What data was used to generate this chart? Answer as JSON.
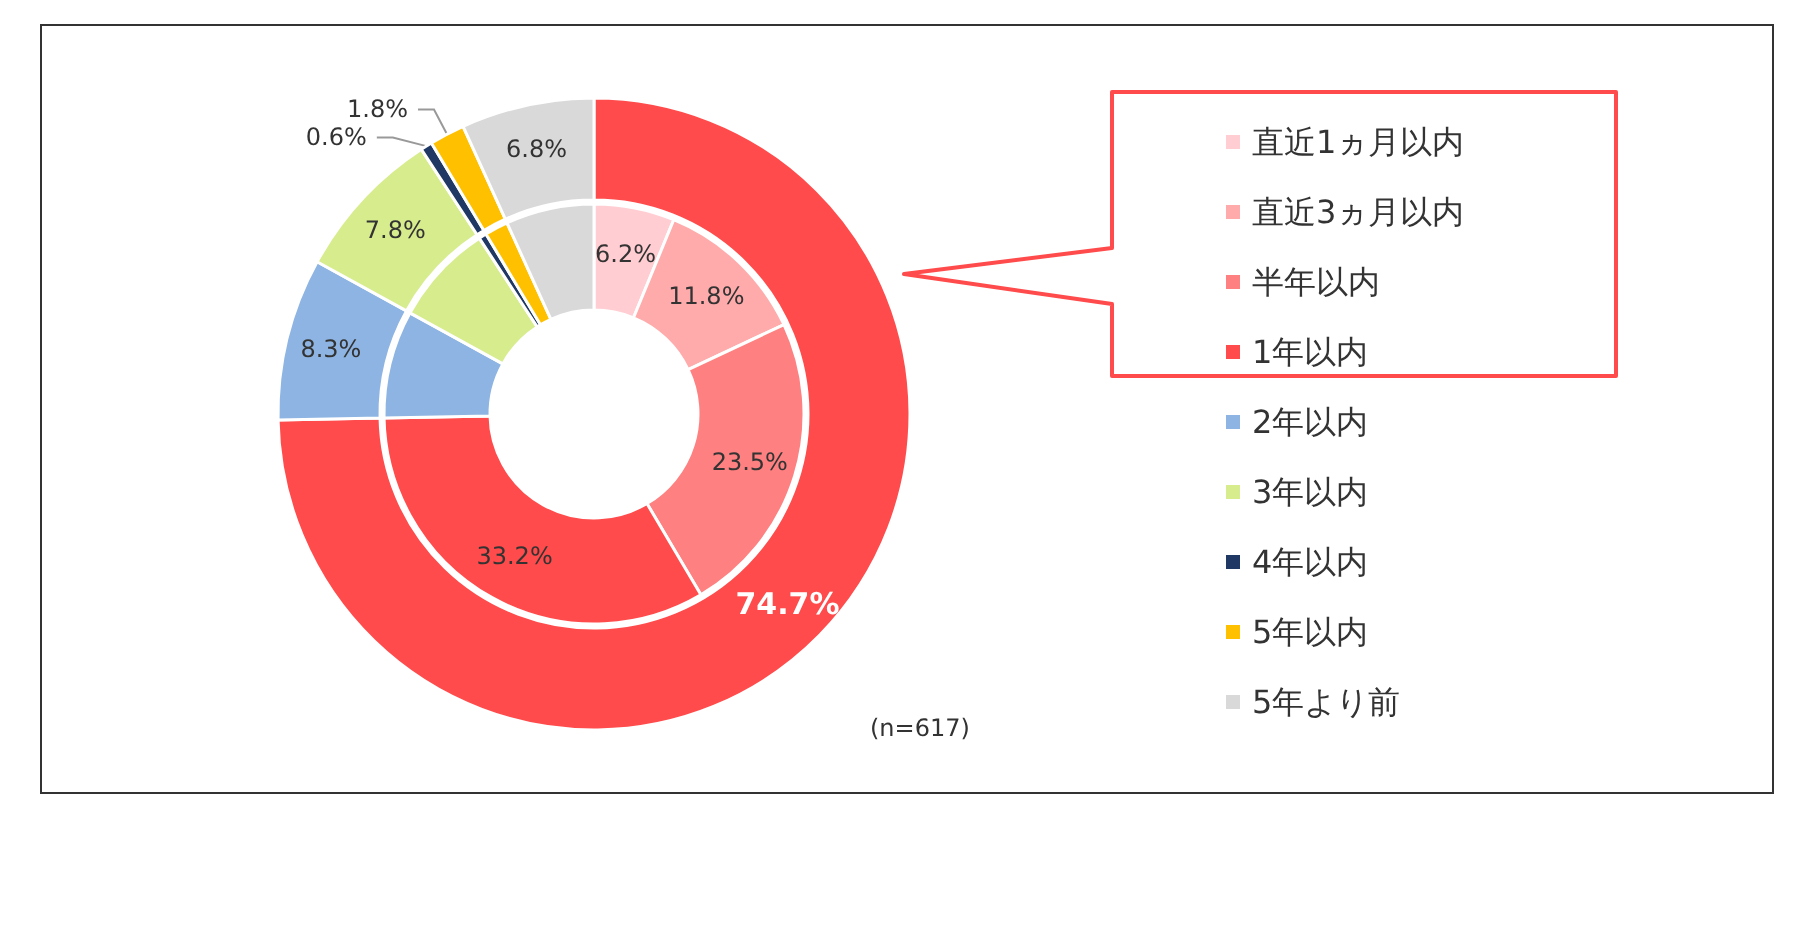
{
  "chart_data": {
    "type": "donut",
    "categories": [
      "直近1ヵ月以内",
      "直近3ヵ月以内",
      "半年以内",
      "1年以内",
      "2年以内",
      "3年以内",
      "4年以内",
      "5年以内",
      "5年より前"
    ],
    "colors": [
      "#ffcdd2",
      "#ffabab",
      "#ff8080",
      "#ff4b4b",
      "#8db4e2",
      "#d7ec8c",
      "#1f3864",
      "#ffc000",
      "#d9d9d9"
    ],
    "series": [
      {
        "values": [
          6.2,
          11.8,
          23.5,
          33.2,
          8.3,
          7.8,
          0.6,
          1.8,
          6.8
        ],
        "value_labels": [
          "6.2%",
          "11.8%",
          "23.5%",
          "33.2%",
          null,
          null,
          null,
          null,
          null
        ]
      },
      {
        "values": [
          null,
          null,
          null,
          74.7,
          8.3,
          7.8,
          0.6,
          1.8,
          6.8
        ],
        "value_labels": [
          null,
          null,
          null,
          "74.7%",
          "8.3%",
          "7.8%",
          "0.6%",
          "1.8%",
          "6.8%"
        ]
      }
    ],
    "legend": "right",
    "annotations": [
      "(n=617)"
    ]
  }
}
